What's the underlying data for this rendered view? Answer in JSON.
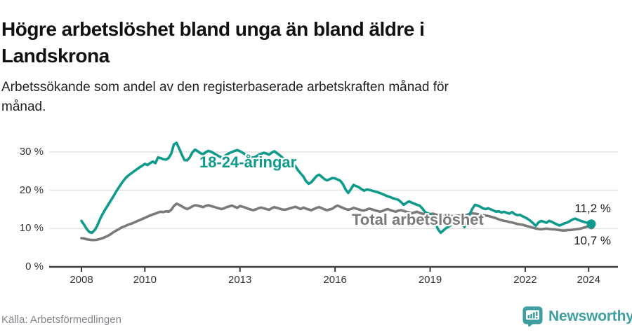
{
  "header": {
    "title": "Högre arbetslöshet bland unga än bland äldre i Landskrona",
    "subtitle": "Arbetssökande som andel av den registerbaserade arbetskraften månad för månad."
  },
  "footer": {
    "source": "Källa: Arbetsförmedlingen",
    "brand": "Newsworthy"
  },
  "colors": {
    "youth_line": "#0f9b8c",
    "total_line": "#7a7a7a",
    "grid": "#e2e2e2",
    "axis": "#3d3d3d",
    "tick_text": "#333333",
    "brand_teal": "#3f9fa0",
    "end_label_text": "#191919"
  },
  "chart_data": {
    "type": "line",
    "x_start": "2008-01",
    "x_end": "2024-02",
    "x_frequency": "monthly",
    "ylim": [
      0,
      33
    ],
    "grid": true,
    "y_ticks": [
      {
        "label": "0 %",
        "value": 0
      },
      {
        "label": "10 %",
        "value": 10
      },
      {
        "label": "20 %",
        "value": 20
      },
      {
        "label": "30 %",
        "value": 30
      }
    ],
    "x_ticks": [
      {
        "label": "2008",
        "year": 2008
      },
      {
        "label": "2010",
        "year": 2010
      },
      {
        "label": "2013",
        "year": 2013
      },
      {
        "label": "2016",
        "year": 2016
      },
      {
        "label": "2019",
        "year": 2019
      },
      {
        "label": "2022",
        "year": 2022
      },
      {
        "label": "2024",
        "year": 2024
      }
    ],
    "series": [
      {
        "name": "18-24-åringar",
        "label": "18-24-åringar",
        "end_label": "11,2 %",
        "end_value": 11.2,
        "color": "#0f9b8c",
        "values": [
          12.0,
          11.0,
          9.9,
          9.1,
          8.9,
          9.6,
          10.8,
          12.4,
          13.8,
          15.0,
          16.1,
          17.2,
          18.3,
          19.5,
          20.6,
          21.6,
          22.6,
          23.4,
          24.0,
          24.5,
          25.0,
          25.5,
          26.0,
          26.4,
          26.9,
          26.6,
          27.1,
          27.5,
          27.1,
          28.6,
          28.4,
          28.1,
          28.0,
          28.4,
          29.6,
          32.0,
          32.4,
          30.9,
          29.3,
          27.9,
          27.8,
          28.6,
          29.9,
          30.6,
          30.2,
          29.7,
          29.4,
          29.9,
          30.3,
          30.1,
          29.7,
          29.3,
          28.9,
          28.6,
          28.9,
          29.3,
          29.7,
          30.0,
          30.3,
          30.5,
          30.2,
          29.8,
          29.4,
          29.0,
          28.7,
          28.5,
          28.8,
          29.2,
          29.5,
          29.8,
          29.6,
          29.3,
          29.8,
          30.2,
          29.7,
          29.2,
          28.6,
          28.1,
          27.7,
          27.3,
          26.9,
          26.3,
          25.2,
          24.4,
          23.6,
          22.4,
          21.7,
          22.1,
          22.9,
          23.7,
          24.1,
          23.5,
          22.9,
          22.6,
          22.9,
          23.2,
          23.1,
          22.8,
          22.5,
          21.6,
          20.2,
          19.3,
          20.3,
          21.4,
          21.1,
          20.8,
          20.3,
          19.9,
          20.2,
          20.1,
          19.9,
          19.7,
          19.5,
          19.3,
          19.0,
          18.7,
          18.4,
          18.2,
          17.9,
          17.7,
          17.5,
          16.9,
          16.2,
          16.7,
          17.1,
          16.8,
          16.5,
          16.2,
          16.0,
          15.3,
          14.4,
          14.0,
          13.8,
          12.9,
          11.5,
          9.8,
          8.9,
          9.5,
          10.1,
          10.5,
          11.0,
          11.5,
          12.0,
          12.4,
          11.6,
          10.4,
          11.8,
          13.8,
          15.2,
          16.2,
          16.0,
          15.7,
          15.3,
          15.1,
          15.3,
          15.0,
          14.7,
          14.4,
          14.5,
          14.2,
          14.4,
          14.1,
          13.9,
          14.3,
          13.8,
          13.5,
          13.6,
          13.2,
          12.9,
          12.5,
          12.0,
          11.4,
          10.7,
          11.6,
          12.0,
          11.8,
          11.5,
          12.0,
          11.8,
          11.4,
          11.1,
          10.8,
          11.1,
          11.4,
          11.6,
          12.0,
          12.4,
          12.6,
          12.3,
          12.0,
          11.8,
          11.6,
          11.5,
          11.2
        ]
      },
      {
        "name": "Total arbetslöshet",
        "label": "Total arbetslöshet",
        "end_label": "10,7 %",
        "end_value": 10.7,
        "color": "#7a7a7a",
        "values": [
          7.5,
          7.4,
          7.2,
          7.1,
          7.0,
          7.0,
          7.1,
          7.3,
          7.5,
          7.8,
          8.1,
          8.5,
          9.0,
          9.4,
          9.8,
          10.2,
          10.5,
          10.8,
          11.1,
          11.3,
          11.6,
          11.9,
          12.2,
          12.5,
          12.8,
          13.1,
          13.4,
          13.7,
          13.9,
          14.2,
          14.4,
          14.3,
          14.5,
          14.4,
          14.9,
          15.9,
          16.5,
          16.2,
          15.8,
          15.4,
          15.1,
          15.4,
          15.8,
          16.1,
          16.0,
          15.8,
          15.6,
          15.9,
          16.1,
          15.9,
          15.7,
          15.5,
          15.3,
          15.1,
          15.3,
          15.6,
          15.8,
          16.0,
          15.7,
          15.4,
          15.9,
          15.7,
          15.5,
          15.2,
          15.0,
          14.8,
          15.0,
          15.3,
          15.5,
          15.3,
          15.1,
          14.9,
          15.3,
          15.6,
          15.4,
          15.2,
          15.0,
          14.9,
          15.1,
          15.3,
          15.5,
          15.7,
          15.4,
          15.1,
          15.5,
          15.2,
          15.0,
          14.8,
          15.1,
          15.4,
          15.6,
          15.3,
          15.0,
          14.8,
          15.0,
          15.2,
          15.7,
          16.0,
          15.7,
          15.4,
          15.1,
          14.9,
          15.1,
          15.4,
          15.2,
          15.0,
          14.8,
          14.7,
          15.0,
          15.2,
          15.0,
          14.8,
          14.6,
          14.4,
          14.6,
          14.9,
          15.1,
          14.8,
          14.6,
          14.4,
          14.7,
          14.8,
          14.6,
          14.4,
          14.2,
          14.0,
          14.2,
          14.4,
          14.1,
          13.9,
          13.8,
          13.6,
          13.8,
          13.9,
          13.7,
          13.5,
          13.4,
          13.3,
          13.4,
          13.5,
          13.3,
          13.2,
          13.3,
          13.4,
          13.5,
          13.4,
          13.6,
          13.9,
          14.0,
          13.9,
          13.8,
          13.7,
          13.5,
          13.4,
          13.3,
          13.1,
          12.9,
          12.7,
          12.4,
          12.2,
          12.0,
          11.9,
          11.7,
          11.6,
          11.4,
          11.2,
          11.1,
          11.0,
          10.8,
          10.6,
          10.4,
          10.2,
          10.0,
          9.9,
          9.8,
          9.9,
          10.0,
          9.9,
          9.8,
          9.8,
          9.7,
          9.6,
          9.5,
          9.5,
          9.6,
          9.6,
          9.7,
          9.8,
          9.9,
          10.0,
          10.2,
          10.4,
          10.6,
          10.7
        ]
      }
    ]
  }
}
